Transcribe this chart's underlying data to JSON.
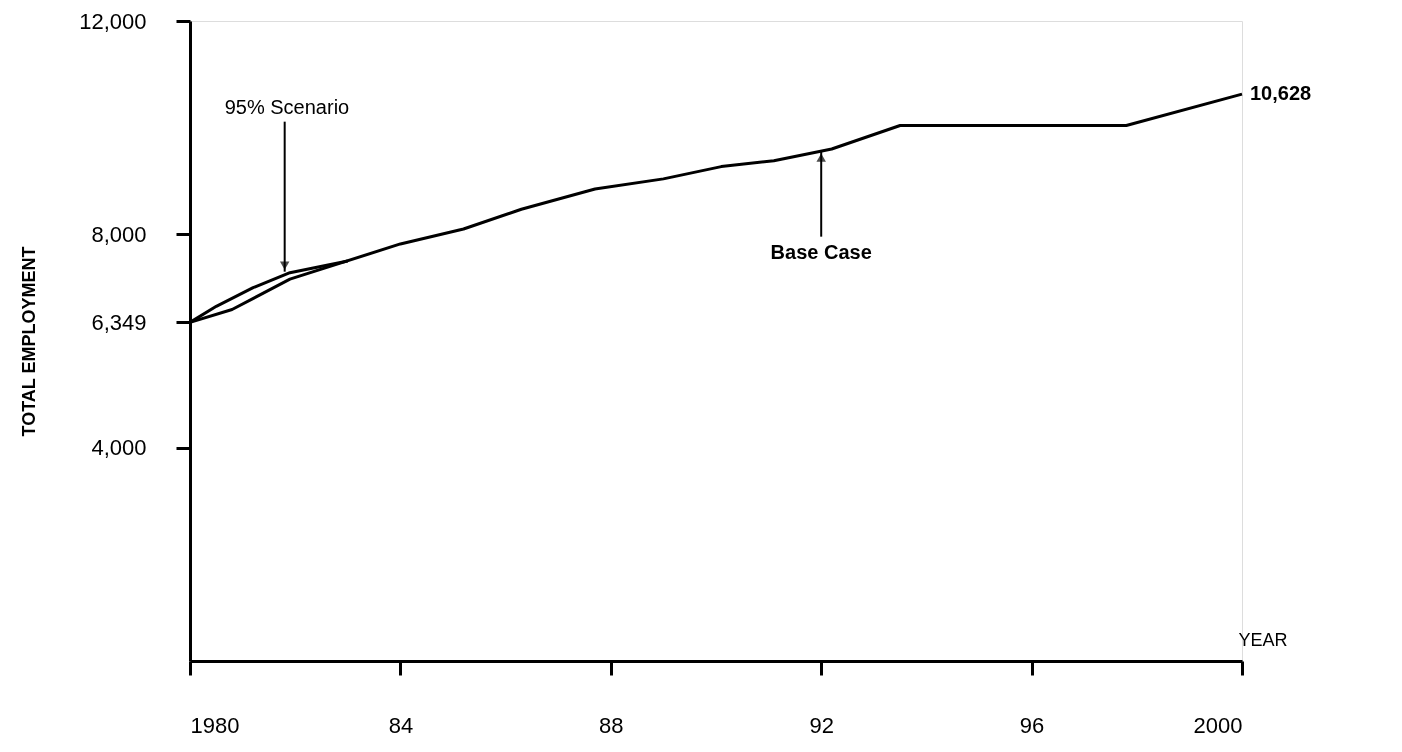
{
  "chart_data": {
    "type": "line",
    "xlabel": "YEAR",
    "ylabel": "TOTAL EMPLOYMENT",
    "xlim": [
      1980,
      2000
    ],
    "ylim": [
      0,
      12000
    ],
    "xticks": [
      1980,
      {
        "value": 1984,
        "label": "84"
      },
      {
        "value": 1988,
        "label": "88"
      },
      {
        "value": 1992,
        "label": "92"
      },
      {
        "value": 1996,
        "label": "96"
      },
      2000
    ],
    "yticks": [
      {
        "value": 4000,
        "label": "4,000"
      },
      {
        "value": 6349,
        "label": "6,349"
      },
      {
        "value": 8000,
        "label": "8,000"
      },
      {
        "value": 12000,
        "label": "12,000"
      }
    ],
    "grid": false,
    "marker": "none",
    "line_style": "solid",
    "series": [
      {
        "color": "#000000",
        "x": [
          1980,
          1980.8,
          1981.9,
          1984,
          1985.2,
          1986.3,
          1987.7,
          1989,
          1990.1,
          1991.1,
          1992.2,
          1993.5,
          1997.8,
          2000
        ],
        "values": [
          6349,
          6590,
          7160,
          7820,
          8100,
          8470,
          8850,
          9040,
          9270,
          9380,
          9600,
          10040,
          10040,
          10628
        ]
      },
      {
        "color": "#000000",
        "x": [
          1980,
          1980.5,
          1981.2,
          1981.9,
          1982.6,
          1983
        ],
        "values": [
          6349,
          6650,
          7000,
          7280,
          7420,
          7500
        ]
      }
    ],
    "annotations": [
      {
        "text": "95% Scenario",
        "x": 1981.8,
        "y": 7300
      },
      {
        "text": "Base Case",
        "x": 1992,
        "y": 9550
      },
      {
        "text": "10,628",
        "x": 2000,
        "y": 10628
      }
    ]
  }
}
